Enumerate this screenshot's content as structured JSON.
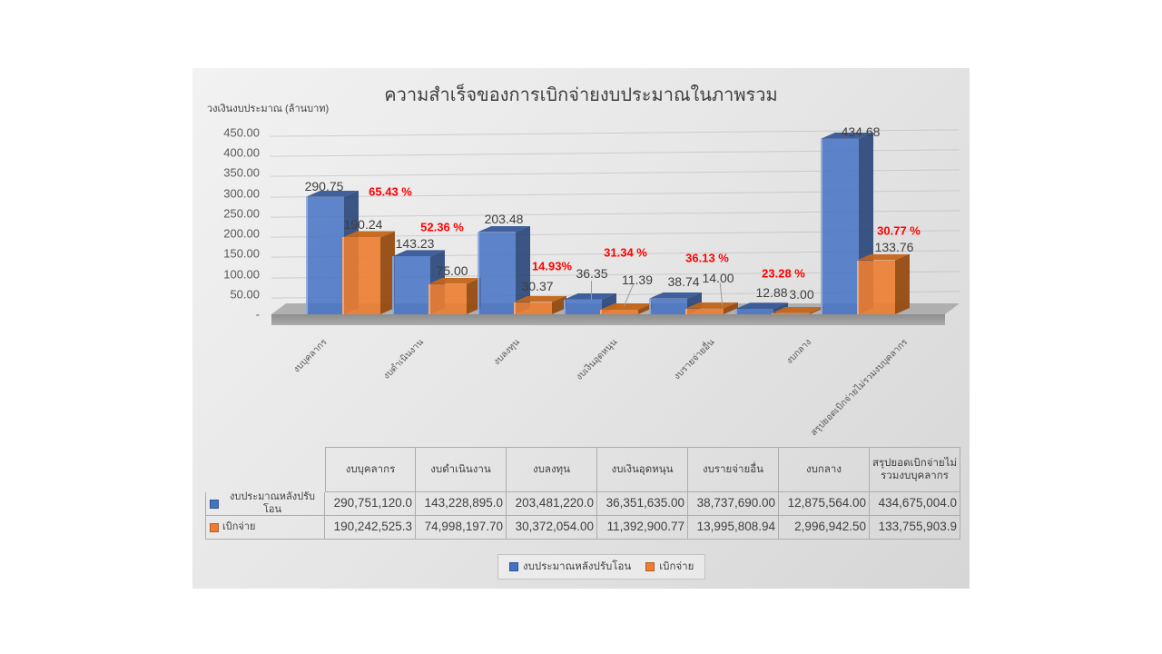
{
  "chart_data": {
    "type": "bar",
    "title": "ความสำเร็จของการเบิกจ่ายงบประมาณในภาพรวม",
    "axis_label": "วงเงินงบประมาณ (ล้านบาท)",
    "categories": [
      "งบบุคลากร",
      "งบดำเนินงาน",
      "งบลงทุน",
      "งบเงินอุดหนุน",
      "งบรายจ่ายอื่น",
      "งบกลาง",
      "สรุปยอดเบิกจ่ายไม่รวมงบบุคลากร"
    ],
    "series": [
      {
        "name": "งบประมาณหลังปรับโอน",
        "color": "#4472C4",
        "values": [
          290.75,
          143.23,
          203.48,
          36.35,
          38.74,
          12.88,
          434.68
        ],
        "point_labels": [
          "290.75",
          "143.23",
          "203.48",
          "36.35",
          "38.74",
          "12.88",
          "434.68"
        ]
      },
      {
        "name": "เบิกจ่าย",
        "color": "#ED7D31",
        "values": [
          190.24,
          75.0,
          30.37,
          11.39,
          14.0,
          3.0,
          133.76
        ],
        "point_labels": [
          "190.24",
          "75.00",
          "30.37",
          "11.39",
          "14.00",
          "3.00",
          "133.76"
        ]
      }
    ],
    "percent_labels": [
      "65.43 %",
      "52.36 %",
      "14.93%",
      "31.34 %",
      "36.13 %",
      "23.28 %",
      "30.77 %"
    ],
    "percent_label_color": "#FF0000",
    "y_ticks": [
      "450.00",
      "400.00",
      "350.00",
      "300.00",
      "250.00",
      "200.00",
      "150.00",
      "100.00",
      "50.00",
      "-"
    ],
    "ylim": [
      0,
      450
    ],
    "grid": true,
    "legend_position": "bottom"
  },
  "table": {
    "col_headers": [
      "งบบุคลากร",
      "งบดำเนินงาน",
      "งบลงทุน",
      "งบเงินอุดหนุน",
      "งบรายจ่ายอื่น",
      "งบกลาง",
      "สรุปยอดเบิกจ่ายไม่ รวมงบบุคลากร"
    ],
    "rows": [
      {
        "label": "งบประมาณหลังปรับโอน",
        "swatch_color": "#4472C4",
        "values": [
          "290,751,120.0",
          "143,228,895.0",
          "203,481,220.0",
          "36,351,635.00",
          "38,737,690.00",
          "12,875,564.00",
          "434,675,004.0"
        ]
      },
      {
        "label": "เบิกจ่าย",
        "swatch_color": "#ED7D31",
        "values": [
          "190,242,525.3",
          "74,998,197.70",
          "30,372,054.00",
          "11,392,900.77",
          "13,995,808.94",
          "2,996,942.50",
          "133,755,903.9"
        ]
      }
    ]
  },
  "legend": {
    "items": [
      {
        "label": "งบประมาณหลังปรับโอน",
        "color": "#4472C4"
      },
      {
        "label": "เบิกจ่าย",
        "color": "#ED7D31"
      }
    ]
  }
}
